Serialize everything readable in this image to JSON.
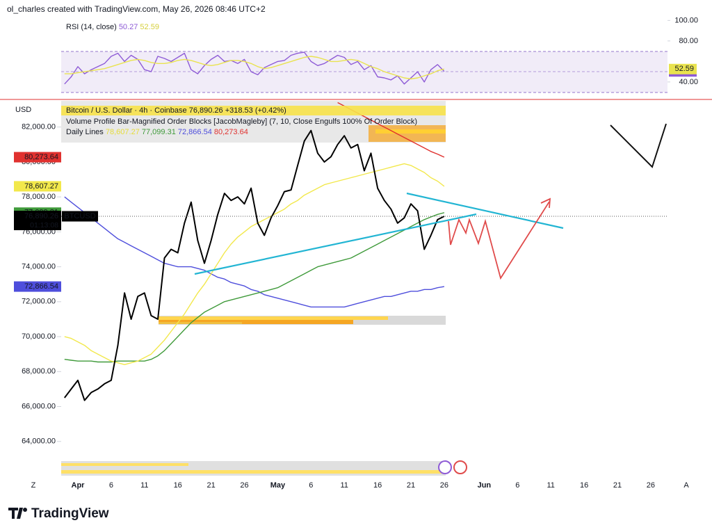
{
  "header": "ol_charles created with TradingView.com, May 26, 2026 08:46 UTC+2",
  "currency": "USD",
  "symbol": "BTCUSD",
  "countdown": "01:13:08",
  "legend": {
    "symbol_line": "Bitcoin / U.S. Dollar · 4h · Coinbase",
    "last": "76,890.26",
    "change": "+318.53 (+0.42%)",
    "indicator": "Volume Profile Bar-Magnified Order Blocks [JacobMagleby] (7, 10, Close Engulfs 100% Of Order Block)",
    "daily_lines": "Daily Lines",
    "daily_values": [
      "78,607.27",
      "77,099.31",
      "72,866.54",
      "80,273.64"
    ],
    "rsi": "RSI (14, close)",
    "rsi_values": [
      "50.27",
      "52.59"
    ]
  },
  "chart_data": [
    {
      "type": "line",
      "categories": [
        null,
        null,
        "Apr",
        null,
        null,
        null,
        null,
        "6",
        null,
        null,
        null,
        null,
        "11",
        null,
        null,
        null,
        null,
        "16",
        null,
        null,
        null,
        null,
        "21",
        null,
        null,
        null,
        null,
        "26",
        null,
        null,
        null,
        null,
        "May",
        null,
        null,
        null,
        null,
        "6",
        null,
        null,
        null,
        null,
        "11",
        null,
        null,
        null,
        null,
        "16",
        null,
        null,
        null,
        null,
        "21",
        null,
        null,
        null,
        null,
        "26",
        null,
        null,
        null,
        null,
        null,
        "Jun",
        null,
        null,
        null,
        null,
        "6",
        null,
        null,
        null,
        null,
        "11",
        null,
        null,
        null,
        null,
        "16",
        null,
        null,
        null,
        null,
        "21",
        null,
        null,
        null,
        null,
        "26",
        null,
        null,
        null
      ],
      "ylim": [
        62000,
        83500
      ],
      "yticks": [
        {
          "value": 64000,
          "label": "64,000.00"
        },
        {
          "value": 66000,
          "label": "66,000.00"
        },
        {
          "value": 68000,
          "label": "68,000.00"
        },
        {
          "value": 70000,
          "label": "70,000.00"
        },
        {
          "value": 72000,
          "label": "72,000.00"
        },
        {
          "value": 74000,
          "label": "74,000.00"
        },
        {
          "value": 76000,
          "label": "76,000.00"
        },
        {
          "value": 78000,
          "label": "78,000.00"
        },
        {
          "value": 80000,
          "label": "80,000.00"
        },
        {
          "value": 82000,
          "label": "82,000.00"
        }
      ],
      "grid": false,
      "series": [
        {
          "name": "BTCUSD",
          "color": "#000000",
          "values": [
            66500,
            67000,
            67500,
            66350,
            66800,
            67000,
            67300,
            67500,
            69500,
            72500,
            71000,
            72300,
            72500,
            71200,
            71000,
            74500,
            75000,
            74800,
            76500,
            77700,
            75500,
            74200,
            75500,
            77000,
            78200,
            77800,
            78000,
            77600,
            78500,
            76500,
            75800,
            76800,
            77500,
            78300,
            78400,
            79800,
            81200,
            81800,
            80500,
            80000,
            80300,
            81000,
            81500,
            80800,
            81000,
            79500,
            80500,
            78500,
            77800,
            77300,
            76500,
            76800,
            77600,
            77200,
            75000,
            75800,
            76700,
            76890.26,
            null,
            null,
            null,
            null,
            null,
            null,
            null,
            null,
            null,
            null,
            null,
            null,
            null,
            null,
            null,
            null,
            null,
            null,
            null,
            null,
            null,
            null,
            null,
            null,
            null,
            null,
            null,
            null,
            null,
            null,
            null,
            null,
            null,
            null
          ]
        },
        {
          "color": "#f2e84b",
          "values": [
            70000,
            69900,
            69700,
            69500,
            69200,
            69000,
            68800,
            68600,
            68500,
            68400,
            68500,
            68600,
            68800,
            69000,
            69400,
            69800,
            70300,
            70800,
            71300,
            71900,
            72500,
            73000,
            73600,
            74200,
            74800,
            75300,
            75700,
            76000,
            76300,
            76500,
            76700,
            76900,
            77100,
            77300,
            77600,
            77800,
            78100,
            78300,
            78500,
            78700,
            78800,
            78900,
            79000,
            79100,
            79200,
            79300,
            79400,
            79500,
            79600,
            79700,
            79800,
            79900,
            79800,
            79600,
            79400,
            79100,
            78900,
            78607.27,
            null,
            null,
            null,
            null,
            null,
            null,
            null,
            null,
            null,
            null,
            null,
            null,
            null,
            null,
            null,
            null,
            null,
            null,
            null,
            null,
            null,
            null,
            null,
            null,
            null,
            null,
            null,
            null,
            null,
            null,
            null,
            null,
            null,
            null
          ]
        },
        {
          "color": "#3f9a3a",
          "values": [
            68700,
            68650,
            68600,
            68600,
            68600,
            68550,
            68550,
            68550,
            68600,
            68600,
            68600,
            68600,
            68600,
            68700,
            68900,
            69200,
            69600,
            70000,
            70400,
            70800,
            71100,
            71400,
            71600,
            71800,
            72000,
            72100,
            72200,
            72300,
            72400,
            72500,
            72600,
            72700,
            72800,
            73000,
            73200,
            73400,
            73600,
            73800,
            74000,
            74100,
            74200,
            74300,
            74400,
            74500,
            74700,
            74900,
            75100,
            75300,
            75500,
            75700,
            75900,
            76100,
            76300,
            76500,
            76700,
            76850,
            77000,
            77099.31,
            null,
            null,
            null,
            null,
            null,
            null,
            null,
            null,
            null,
            null,
            null,
            null,
            null,
            null,
            null,
            null,
            null,
            null,
            null,
            null,
            null,
            null,
            null,
            null,
            null,
            null,
            null,
            null,
            null,
            null,
            null,
            null,
            null,
            null
          ]
        },
        {
          "color": "#4e4edc",
          "values": [
            78000,
            77700,
            77400,
            77100,
            76800,
            76500,
            76200,
            75900,
            75600,
            75400,
            75200,
            75000,
            74800,
            74600,
            74400,
            74200,
            74100,
            74000,
            74000,
            74000,
            73900,
            73800,
            73600,
            73400,
            73300,
            73100,
            73000,
            72900,
            72700,
            72600,
            72400,
            72300,
            72200,
            72100,
            72000,
            71900,
            71800,
            71700,
            71700,
            71700,
            71700,
            71700,
            71700,
            71800,
            71900,
            72000,
            72100,
            72200,
            72300,
            72300,
            72400,
            72500,
            72600,
            72600,
            72700,
            72700,
            72800,
            72866.54,
            null,
            null,
            null,
            null,
            null,
            null,
            null,
            null,
            null,
            null,
            null,
            null,
            null,
            null,
            null,
            null,
            null,
            null,
            null,
            null,
            null,
            null,
            null,
            null,
            null,
            null,
            null,
            null,
            null,
            null,
            null,
            null,
            null,
            null
          ]
        },
        {
          "color": "#e0312f",
          "values": [
            null,
            null,
            null,
            null,
            null,
            null,
            null,
            null,
            null,
            null,
            null,
            null,
            null,
            null,
            null,
            null,
            null,
            null,
            null,
            null,
            null,
            null,
            null,
            null,
            null,
            null,
            null,
            null,
            null,
            null,
            null,
            null,
            null,
            null,
            null,
            null,
            null,
            null,
            null,
            null,
            null,
            83400,
            83200,
            83000,
            82800,
            82600,
            82400,
            82200,
            82000,
            81800,
            81600,
            81400,
            81200,
            81000,
            80800,
            80600,
            80450,
            80273.64,
            null,
            null,
            null,
            null,
            null,
            null,
            null,
            null,
            null,
            null,
            null,
            null,
            null,
            null,
            null,
            null,
            null,
            null,
            null,
            null,
            null,
            null,
            null,
            null,
            null,
            null,
            null,
            null,
            null,
            null,
            null,
            null,
            null,
            null
          ]
        }
      ]
    },
    {
      "type": "line",
      "ylim": [
        25,
        105
      ],
      "yticks": [
        {
          "value": 100,
          "label": "100.00"
        },
        {
          "value": 80,
          "label": "80.00"
        },
        {
          "value": 40,
          "label": "40.00"
        }
      ],
      "series": [
        {
          "color": "#8e5bd6",
          "values": [
            38,
            45,
            55,
            48,
            52,
            55,
            58,
            65,
            68,
            60,
            66,
            62,
            52,
            50,
            65,
            63,
            60,
            64,
            68,
            52,
            48,
            56,
            62,
            66,
            60,
            61,
            58,
            62,
            50,
            47,
            54,
            57,
            60,
            61,
            66,
            68,
            69,
            60,
            56,
            58,
            62,
            66,
            64,
            57,
            60,
            52,
            56,
            45,
            44,
            42,
            46,
            38,
            44,
            50,
            40,
            52,
            57,
            50.27
          ]
        },
        {
          "color": "#e9e34f",
          "values": [
            48,
            48,
            49,
            50,
            51,
            52,
            53,
            55,
            57,
            59,
            61,
            62,
            61,
            59,
            58,
            58,
            59,
            61,
            62,
            61,
            59,
            57,
            56,
            57,
            59,
            61,
            61,
            60,
            58,
            55,
            53,
            54,
            56,
            58,
            60,
            62,
            64,
            65,
            64,
            62,
            60,
            60,
            61,
            62,
            61,
            58,
            55,
            53,
            50,
            48,
            46,
            44,
            43,
            44,
            46,
            48,
            51,
            52.59
          ]
        }
      ]
    }
  ],
  "footer": {
    "brand": "TradingView",
    "left": "Z",
    "right": "A"
  }
}
